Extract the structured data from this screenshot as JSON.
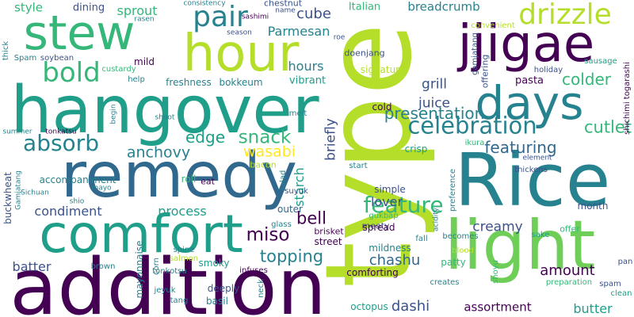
{
  "palette": {
    "purple": "#440154",
    "indigo": "#3b528b",
    "blue": "#31688e",
    "teal": "#26828e",
    "green": "#1f9e89",
    "mint": "#35b779",
    "lime": "#6ece58",
    "yellowgreen": "#b5de2b",
    "yellow": "#fde725"
  },
  "words": [
    {
      "text": "type",
      "color": "yellowgreen"
    },
    {
      "text": "addition",
      "color": "purple"
    },
    {
      "text": "hangover",
      "color": "green"
    },
    {
      "text": "remedy",
      "color": "blue"
    },
    {
      "text": "comfort",
      "color": "green"
    },
    {
      "text": "Rice",
      "color": "teal"
    },
    {
      "text": "light",
      "color": "lime"
    },
    {
      "text": "hour",
      "color": "yellowgreen"
    },
    {
      "text": "stew",
      "color": "mint"
    },
    {
      "text": "jjigae",
      "color": "purple"
    },
    {
      "text": "days",
      "color": "teal"
    },
    {
      "text": "pair",
      "color": "teal"
    },
    {
      "text": "drizzle",
      "color": "yellowgreen"
    },
    {
      "text": "bold",
      "color": "mint"
    },
    {
      "text": "celebration",
      "color": "teal"
    },
    {
      "text": "absorb",
      "color": "teal"
    },
    {
      "text": "feature",
      "color": "mint"
    },
    {
      "text": "featuring",
      "color": "blue"
    },
    {
      "text": "cutlet",
      "color": "mint"
    },
    {
      "text": "presentation",
      "color": "teal"
    },
    {
      "text": "colder",
      "color": "mint"
    },
    {
      "text": "snack",
      "color": "mint"
    },
    {
      "text": "edge",
      "color": "green"
    },
    {
      "text": "anchovy",
      "color": "teal"
    },
    {
      "text": "wasabi",
      "color": "yellow"
    },
    {
      "text": "miso",
      "color": "purple"
    },
    {
      "text": "topping",
      "color": "teal"
    },
    {
      "text": "bell",
      "color": "purple"
    },
    {
      "text": "creamy",
      "color": "indigo"
    },
    {
      "text": "amount",
      "color": "purple"
    },
    {
      "text": "butter",
      "color": "green"
    },
    {
      "text": "assortment",
      "color": "purple"
    },
    {
      "text": "dashi",
      "color": "indigo"
    },
    {
      "text": "chashu",
      "color": "blue"
    },
    {
      "text": "lover",
      "color": "indigo"
    },
    {
      "text": "process",
      "color": "green"
    },
    {
      "text": "condiment",
      "color": "indigo"
    },
    {
      "text": "batter",
      "color": "indigo"
    },
    {
      "text": "cube",
      "color": "indigo"
    },
    {
      "text": "sprout",
      "color": "mint"
    },
    {
      "text": "Parmesan",
      "color": "teal"
    },
    {
      "text": "hours",
      "color": "teal"
    },
    {
      "text": "grill",
      "color": "indigo"
    },
    {
      "text": "juice",
      "color": "indigo"
    },
    {
      "text": "breadcrumb",
      "color": "teal"
    },
    {
      "text": "starch",
      "color": "green"
    },
    {
      "text": "briefly",
      "color": "indigo"
    },
    {
      "text": "style",
      "color": "mint"
    },
    {
      "text": "dining",
      "color": "indigo"
    },
    {
      "text": "Italian",
      "color": "mint"
    },
    {
      "text": "vibrant",
      "color": "green"
    },
    {
      "text": "signature",
      "color": "yellowgreen"
    },
    {
      "text": "freshness",
      "color": "teal"
    },
    {
      "text": "bokkeum",
      "color": "teal"
    },
    {
      "text": "mild",
      "color": "purple"
    },
    {
      "text": "cold",
      "color": "purple"
    },
    {
      "text": "crisp",
      "color": "green"
    },
    {
      "text": "pasta",
      "color": "purple"
    },
    {
      "text": "doenjang",
      "color": "indigo"
    },
    {
      "text": "accompaniment",
      "color": "teal"
    },
    {
      "text": "month",
      "color": "indigo"
    },
    {
      "text": "simple",
      "color": "indigo"
    },
    {
      "text": "meaty",
      "color": "indigo"
    },
    {
      "text": "outer",
      "color": "blue"
    },
    {
      "text": "street",
      "color": "purple"
    },
    {
      "text": "brisket",
      "color": "purple"
    },
    {
      "text": "mildness",
      "color": "teal"
    },
    {
      "text": "comforting",
      "color": "purple"
    },
    {
      "text": "patty",
      "color": "mint"
    },
    {
      "text": "spread",
      "color": "purple"
    },
    {
      "text": "smoky",
      "color": "green"
    },
    {
      "text": "deeply",
      "color": "indigo"
    },
    {
      "text": "basil",
      "color": "teal"
    },
    {
      "text": "octopus",
      "color": "green"
    },
    {
      "text": "offer",
      "color": "mint"
    },
    {
      "text": "roll",
      "color": "mint"
    },
    {
      "text": "eat",
      "color": "purple"
    },
    {
      "text": "bacon",
      "color": "yellowgreen"
    },
    {
      "text": "salad",
      "color": "teal"
    },
    {
      "text": "start",
      "color": "teal"
    },
    {
      "text": "suyuk",
      "color": "indigo"
    },
    {
      "text": "glass",
      "color": "teal"
    },
    {
      "text": "gukbap",
      "color": "mint"
    },
    {
      "text": "fall",
      "color": "teal"
    },
    {
      "text": "becomes",
      "color": "teal"
    },
    {
      "text": "sake",
      "color": "green"
    },
    {
      "text": "blood",
      "color": "yellowgreen"
    },
    {
      "text": "shoyu",
      "color": "mint"
    },
    {
      "text": "infuses",
      "color": "purple"
    },
    {
      "text": "neck",
      "color": "teal"
    },
    {
      "text": "spine",
      "color": "teal"
    },
    {
      "text": "mayonnaise",
      "color": "teal"
    },
    {
      "text": "corn",
      "color": "teal"
    },
    {
      "text": "brown",
      "color": "teal"
    },
    {
      "text": "tonkotsu",
      "color": "teal"
    },
    {
      "text": "salmon",
      "color": "yellowgreen"
    },
    {
      "text": "jeyuk",
      "color": "teal"
    },
    {
      "text": "tang",
      "color": "teal"
    },
    {
      "text": "creates",
      "color": "teal"
    },
    {
      "text": "preparation",
      "color": "mint"
    },
    {
      "text": "spam",
      "color": "indigo"
    },
    {
      "text": "clean",
      "color": "green"
    },
    {
      "text": "pan",
      "color": "indigo"
    },
    {
      "text": "element",
      "color": "indigo"
    },
    {
      "text": "thickens",
      "color": "indigo"
    },
    {
      "text": "ikura",
      "color": "mint"
    },
    {
      "text": "melt",
      "color": "teal"
    },
    {
      "text": "shichimi togarashi",
      "color": "purple"
    },
    {
      "text": "sausage",
      "color": "green"
    },
    {
      "text": "holiday",
      "color": "indigo"
    },
    {
      "text": "offering",
      "color": "indigo"
    },
    {
      "text": "gamjatang",
      "color": "indigo"
    },
    {
      "text": "convenient",
      "color": "yellowgreen"
    },
    {
      "text": "preference",
      "color": "teal"
    },
    {
      "text": "acidity",
      "color": "teal"
    },
    {
      "text": "roe",
      "color": "indigo"
    },
    {
      "text": "sashimi",
      "color": "purple"
    },
    {
      "text": "name",
      "color": "indigo"
    },
    {
      "text": "season",
      "color": "indigo"
    },
    {
      "text": "consistency",
      "color": "teal"
    },
    {
      "text": "chestnut",
      "color": "indigo"
    },
    {
      "text": "rasen",
      "color": "teal"
    },
    {
      "text": "thick",
      "color": "teal"
    },
    {
      "text": "Spam",
      "color": "teal"
    },
    {
      "text": "soybean",
      "color": "indigo"
    },
    {
      "text": "custardy",
      "color": "mint"
    },
    {
      "text": "help",
      "color": "teal"
    },
    {
      "text": "summer",
      "color": "teal"
    },
    {
      "text": "tonkatsu",
      "color": "purple"
    },
    {
      "text": "begin",
      "color": "teal"
    },
    {
      "text": "shoot",
      "color": "teal"
    },
    {
      "text": "buckwheat",
      "color": "indigo"
    },
    {
      "text": "Gamjatang",
      "color": "teal"
    },
    {
      "text": "Sichuan",
      "color": "teal"
    },
    {
      "text": "mayo",
      "color": "teal"
    },
    {
      "text": "shio",
      "color": "teal"
    }
  ]
}
